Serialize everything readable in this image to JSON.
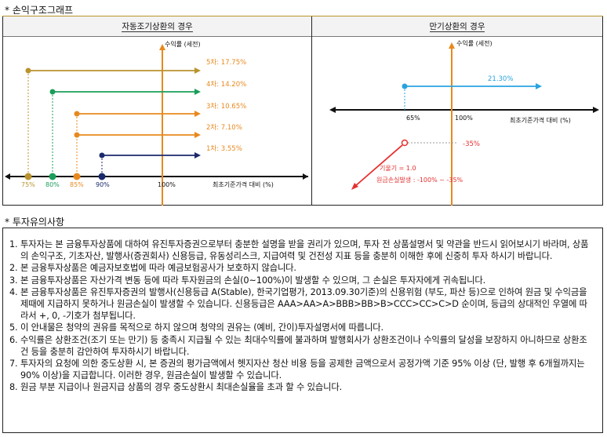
{
  "sections": {
    "profit_structure_title": "* 손익구조그래프",
    "investment_notice_title": "* 투자유의사항"
  },
  "early_panel": {
    "title": "자동조기상환의 경우",
    "y_axis_label": "수익률 (세전)",
    "x_axis_label": "최초기준가격 대비 (%)",
    "hundred_label": "100%",
    "levels": [
      {
        "label": "5차: 17.75%",
        "x_label": "75%",
        "color": "#b9932e"
      },
      {
        "label": "4차: 14.20%",
        "x_label": "80%",
        "color": "#1a9e5a"
      },
      {
        "label": "3차: 10.65%",
        "x_label": "85%",
        "color": "#e8891e"
      },
      {
        "label": "2차: 7.10%",
        "x_label": "",
        "color": "#e8891e"
      },
      {
        "label": "1차: 3.55%",
        "x_label": "90%",
        "color": "#1b2a6b"
      }
    ]
  },
  "maturity_panel": {
    "title": "만기상환의 경우",
    "y_axis_label": "수익률 (세전)",
    "x_axis_label": "최초기준가격 대비 (%)",
    "gain_label": "21.30%",
    "x65_label": "65%",
    "x100_label": "100%",
    "loss_label": "-35%",
    "slope_label": "기울기 = 1.0",
    "loss_formula": "원금손실발생 : -100% ~ -35%"
  },
  "notices": [
    {
      "num": "1.",
      "text": "투자자는 본 금융투자상품에 대하여 유진투자증권으로부터 충분한 설명을 받을 권리가 있으며, 투자 전 상품설명서 및 약관을 반드시 읽어보시기 바라며, 상품의 손익구조, 기초자산, 발행사(증권회사) 신용등급, 유동성리스크, 지급여력 및 건전성 지표 등을 충분히 이해한 후에 신중히 투자 하시기 바랍니다."
    },
    {
      "num": "2.",
      "text": "본 금융투자상품은 예금자보호법에 따라 예금보험공사가 보호하지 않습니다."
    },
    {
      "num": "3.",
      "text": "본 금융투자상품은 자산가격 변동 등에 따라 투자원금의 손실(0~100%)이 발생할 수 있으며, 그 손실은 투자자에게 귀속됩니다."
    },
    {
      "num": "4.",
      "text": "본 금융투자상품은 유진투자증권의 발행사(신용등급 A(Stable), 한국기업평가, 2013.09.30기준)의 신용위험 (부도, 파산 등)으로 인하여 원금 및 수익금을 제때에 지급하지 못하거나 원금손실이 발생할 수 있습니다. 신용등급은 AAA>AA>A>BBB>BB>B>CCC>CC>C>D 순이며, 등급의 상대적인 우열에 따라서 +, 0, -기호가 첨부됩니다."
    },
    {
      "num": "5.",
      "text": "이 안내물은 청약의 권유를 목적으로 하지 않으며 청약의 권유는 (예비, 간이)투자설명서에 따릅니다."
    },
    {
      "num": "6.",
      "text": "수익률은 상환조건(조기 또는 만기) 등 충족시 지급될 수 있는 최대수익률에 불과하며 발행회사가 상환조건이나 수익률의 달성을 보장하지 아니하므로 상환조건 등을 충분히 감안하여 투자하시기 바랍니다."
    },
    {
      "num": "7.",
      "text": "투자자의 요청에 의한 중도상환 시, 본 증권의 평가금액에서 헷지자산 청산 비용 등을 공제한 금액으로서 공정가액 기준 95% 이상 (단, 발행 후 6개월까지는 90% 이상)을 지급합니다. 이러한 경우, 원금손실이 발생할 수 있습니다."
    },
    {
      "num": "8.",
      "text": "원금 부분 지급이나 원금지급 상품의 경우 중도상환시 최대손실율을 초과 할 수 있습니다."
    }
  ]
}
